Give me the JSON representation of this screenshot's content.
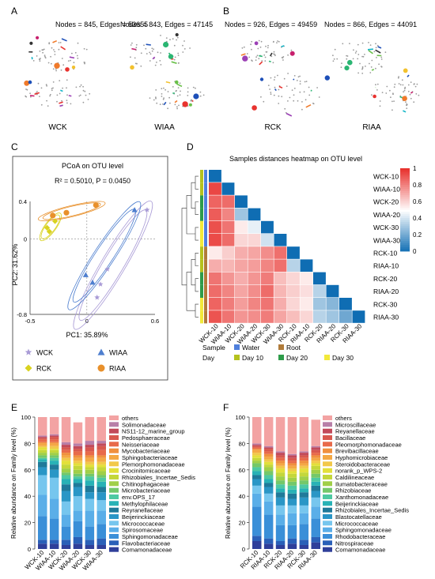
{
  "panels": {
    "A": {
      "letter": "A",
      "networks": [
        {
          "stats": "Nodes = 845, Edges = 53655",
          "label": "WCK"
        },
        {
          "stats": "Nodes = 843, Edges = 47145",
          "label": "WIAA"
        }
      ]
    },
    "B": {
      "letter": "B",
      "networks": [
        {
          "stats": "Nodes = 926, Edges = 49459",
          "label": "RCK"
        },
        {
          "stats": "Nodes = 866, Edges = 44091",
          "label": "RIAA"
        }
      ]
    },
    "C": {
      "letter": "C"
    },
    "D": {
      "letter": "D"
    },
    "E": {
      "letter": "E"
    },
    "F": {
      "letter": "F"
    }
  },
  "chart_data": [
    {
      "panel": "C",
      "type": "scatter",
      "title": "PCoA on OTU level",
      "annotation": "R² = 0.5010, P = 0.0450",
      "xlabel": "PC1: 35.89%",
      "ylabel": "PC2: 31.62%",
      "xlim": [
        -0.5,
        0.6
      ],
      "ylim": [
        -0.8,
        0.4
      ],
      "xticks": [
        "-0.5",
        "0",
        "0.6"
      ],
      "yticks": [
        "0.4",
        "0",
        "-0.8"
      ],
      "grid": false,
      "legend_position": "bottom",
      "series": [
        {
          "name": "WCK",
          "marker": "star",
          "color": "#a99bd6",
          "points": [
            [
              0.53,
              0.31
            ],
            [
              0.18,
              -0.32
            ],
            [
              0.12,
              -0.48
            ],
            [
              0.09,
              -0.62
            ]
          ]
        },
        {
          "name": "WIAA",
          "marker": "triangle",
          "color": "#4e7fcf",
          "points": [
            [
              0.42,
              0.31
            ],
            [
              -0.01,
              -0.38
            ],
            [
              0.05,
              -0.46
            ]
          ]
        },
        {
          "name": "RCK",
          "marker": "diamond",
          "color": "#d9d21f",
          "points": [
            [
              -0.35,
              0.12
            ],
            [
              -0.33,
              0.08
            ],
            [
              -0.28,
              0.19
            ]
          ]
        },
        {
          "name": "RIAA",
          "marker": "circle",
          "color": "#e8902b",
          "points": [
            [
              -0.3,
              0.25
            ],
            [
              -0.18,
              0.28
            ],
            [
              0.08,
              0.36
            ]
          ]
        }
      ]
    },
    {
      "panel": "D",
      "type": "heatmap",
      "title": "Samples distances heatmap on OTU level",
      "samples": [
        "WCK-10",
        "WIAA-10",
        "WCK-20",
        "WIAA-20",
        "WCK-30",
        "WIAA-30",
        "RCK-10",
        "RIAA-10",
        "RCK-20",
        "RIAA-20",
        "RCK-30",
        "RIAA-30"
      ],
      "colorbar": {
        "min": 0,
        "max": 1,
        "ticks": [
          "1",
          "0.8",
          "0.6",
          "0.4",
          "0.2",
          "0"
        ],
        "low_color": "#0f6db3",
        "mid_color": "#ffffff",
        "high_color": "#e8332f"
      },
      "lower_triangle": [
        [
          0.95
        ],
        [
          0.88,
          0.86
        ],
        [
          0.9,
          0.8,
          0.3
        ],
        [
          0.93,
          0.84,
          0.55,
          0.45
        ],
        [
          0.94,
          0.86,
          0.6,
          0.6,
          0.4
        ],
        [
          0.55,
          0.62,
          0.7,
          0.72,
          0.78,
          0.85
        ],
        [
          0.7,
          0.68,
          0.72,
          0.74,
          0.8,
          0.85,
          0.35
        ],
        [
          0.84,
          0.76,
          0.7,
          0.76,
          0.82,
          0.66,
          0.6,
          0.55
        ],
        [
          0.86,
          0.8,
          0.72,
          0.78,
          0.86,
          0.68,
          0.62,
          0.58,
          0.35
        ],
        [
          0.88,
          0.82,
          0.74,
          0.8,
          0.84,
          0.7,
          0.6,
          0.55,
          0.3,
          0.25
        ],
        [
          0.92,
          0.84,
          0.76,
          0.78,
          0.82,
          0.72,
          0.66,
          0.6,
          0.35,
          0.3,
          0.2
        ]
      ],
      "group_legend": {
        "sample_title": "Sample",
        "sample": [
          {
            "name": "Water",
            "color": "#4f7fdc"
          },
          {
            "name": "Root",
            "color": "#b07b3a"
          }
        ],
        "day_title": "Day",
        "day": [
          {
            "name": "Day 10",
            "color": "#b5c21e"
          },
          {
            "name": "Day 20",
            "color": "#2e9c4a"
          },
          {
            "name": "Day 30",
            "color": "#f2e93a"
          }
        ]
      }
    },
    {
      "panel": "E",
      "type": "bar",
      "stacked": true,
      "ylabel": "Relative abundance on Family level (%)",
      "ylim": [
        0,
        100
      ],
      "yticks": [
        "0",
        "20",
        "40",
        "60",
        "80",
        "100"
      ],
      "categories": [
        "WCK-10",
        "WIAA-10",
        "WCK-20",
        "WIAA-20",
        "WCK-30",
        "WIAA-30"
      ],
      "legend_position": "right",
      "series": [
        {
          "name": "Comamonadaceae",
          "color": "#2f3f9a",
          "values": [
            4,
            4,
            3,
            4,
            3,
            3
          ]
        },
        {
          "name": "Flavobacteriaceae",
          "color": "#2a60b8",
          "values": [
            3,
            3,
            4,
            5,
            4,
            5
          ]
        },
        {
          "name": "Sphingomonadaceae",
          "color": "#3a8fd8",
          "values": [
            18,
            16,
            10,
            12,
            10,
            11
          ]
        },
        {
          "name": "Spirosomaceae",
          "color": "#5aaee8",
          "values": [
            16,
            15,
            9,
            8,
            12,
            10
          ]
        },
        {
          "name": "Micrococcaceae",
          "color": "#76c6ee",
          "values": [
            15,
            16,
            10,
            11,
            9,
            8
          ]
        },
        {
          "name": "Beijerinckiaceae",
          "color": "#2a96c6",
          "values": [
            6,
            6,
            8,
            7,
            5,
            6
          ]
        },
        {
          "name": "Reyranellaceae",
          "color": "#1f7a9a",
          "values": [
            4,
            4,
            5,
            3,
            5,
            4
          ]
        },
        {
          "name": "Methylophilaceae",
          "color": "#28b2b6",
          "values": [
            2,
            3,
            4,
            3,
            4,
            4
          ]
        },
        {
          "name": "env.OPS_17",
          "color": "#4ec9a2",
          "values": [
            1,
            2,
            3,
            2,
            3,
            3
          ]
        },
        {
          "name": "Microbacteriaceae",
          "color": "#74c86a",
          "values": [
            2,
            2,
            2,
            2,
            2,
            2
          ]
        },
        {
          "name": "Chitinophagaceae",
          "color": "#a0cf48",
          "values": [
            2,
            2,
            3,
            3,
            3,
            3
          ]
        },
        {
          "name": "Rhizobiales_Incertae_Sedis",
          "color": "#c4d73a",
          "values": [
            2,
            2,
            3,
            3,
            2,
            3
          ]
        },
        {
          "name": "Crocinitomicaceae",
          "color": "#e3e03a",
          "values": [
            2,
            1,
            3,
            2,
            2,
            2
          ]
        },
        {
          "name": "Plemorphomonadaceae",
          "color": "#f2c84a",
          "values": [
            1,
            2,
            2,
            2,
            2,
            2
          ]
        },
        {
          "name": "Sphingobacteriaceae",
          "color": "#f4a844",
          "values": [
            2,
            2,
            2,
            2,
            3,
            3
          ]
        },
        {
          "name": "Mycobacteriaceae",
          "color": "#f0903e",
          "values": [
            1,
            1,
            2,
            2,
            2,
            2
          ]
        },
        {
          "name": "Neisseriaceae",
          "color": "#e86a4a",
          "values": [
            2,
            2,
            2,
            3,
            3,
            4
          ]
        },
        {
          "name": "Pedosphaeraceae",
          "color": "#d8584e",
          "values": [
            1,
            2,
            2,
            2,
            3,
            3
          ]
        },
        {
          "name": "NS11-12_marine_group",
          "color": "#c24a5a",
          "values": [
            1,
            1,
            2,
            2,
            2,
            2
          ]
        },
        {
          "name": "Solimonadaceae",
          "color": "#b87fa8",
          "values": [
            1,
            1,
            2,
            2,
            3,
            2
          ]
        },
        {
          "name": "others",
          "color": "#f3a3a3",
          "values": [
            14,
            13,
            19,
            16,
            18,
            18
          ]
        }
      ]
    },
    {
      "panel": "F",
      "type": "bar",
      "stacked": true,
      "ylabel": "Relative abundance on Family level (%)",
      "ylim": [
        0,
        100
      ],
      "yticks": [
        "0",
        "20",
        "40",
        "60",
        "80",
        "100"
      ],
      "categories": [
        "RCK-10",
        "RIAA-10",
        "RCK-20",
        "RIAA-20",
        "RCK-30",
        "RIAA-30"
      ],
      "legend_position": "right",
      "series": [
        {
          "name": "Comamonadaceae",
          "color": "#2f3f9a",
          "values": [
            6,
            4,
            3,
            4,
            3,
            5
          ]
        },
        {
          "name": "Nitrospiraceae",
          "color": "#2a60b8",
          "values": [
            4,
            4,
            3,
            4,
            4,
            4
          ]
        },
        {
          "name": "Rhodobacteraceae",
          "color": "#3a8fd8",
          "values": [
            22,
            18,
            12,
            10,
            12,
            14
          ]
        },
        {
          "name": "Sphingomonadaceae",
          "color": "#5aaee8",
          "values": [
            10,
            10,
            8,
            9,
            8,
            9
          ]
        },
        {
          "name": "Micrococcaceae",
          "color": "#76c6ee",
          "values": [
            6,
            6,
            7,
            6,
            6,
            7
          ]
        },
        {
          "name": "Blastocatellaceae",
          "color": "#2a96c6",
          "values": [
            5,
            5,
            6,
            5,
            6,
            5
          ]
        },
        {
          "name": "Rhizobiales_Incertae_Sedis",
          "color": "#1f7a9a",
          "values": [
            3,
            3,
            4,
            4,
            4,
            4
          ]
        },
        {
          "name": "Beijerinckiaceae",
          "color": "#28b2b6",
          "values": [
            3,
            3,
            3,
            3,
            3,
            3
          ]
        },
        {
          "name": "Xanthomonadaceae",
          "color": "#4ec9a2",
          "values": [
            3,
            3,
            3,
            3,
            3,
            3
          ]
        },
        {
          "name": "Rhizobiaceae",
          "color": "#74c86a",
          "values": [
            3,
            3,
            3,
            3,
            3,
            3
          ]
        },
        {
          "name": "Ilumatobacteraceae",
          "color": "#a0cf48",
          "values": [
            2,
            3,
            3,
            3,
            3,
            3
          ]
        },
        {
          "name": "Caldilineaceae",
          "color": "#c4d73a",
          "values": [
            2,
            2,
            3,
            3,
            3,
            3
          ]
        },
        {
          "name": "norank_p_WPS-2",
          "color": "#e3e03a",
          "values": [
            2,
            2,
            3,
            2,
            3,
            2
          ]
        },
        {
          "name": "Steroidobacteraceae",
          "color": "#f2c84a",
          "values": [
            2,
            2,
            2,
            2,
            2,
            2
          ]
        },
        {
          "name": "Hyphomicrobiaceae",
          "color": "#f4a844",
          "values": [
            2,
            2,
            2,
            2,
            2,
            2
          ]
        },
        {
          "name": "Brevibacillaceae",
          "color": "#f0903e",
          "values": [
            1,
            2,
            2,
            2,
            2,
            2
          ]
        },
        {
          "name": "Pleomorphomonadaceae",
          "color": "#e86a4a",
          "values": [
            1,
            2,
            2,
            2,
            2,
            2
          ]
        },
        {
          "name": "Bacillaceae",
          "color": "#d8584e",
          "values": [
            1,
            2,
            2,
            2,
            2,
            2
          ]
        },
        {
          "name": "Reyanellaceae",
          "color": "#c24a5a",
          "values": [
            1,
            1,
            2,
            2,
            2,
            2
          ]
        },
        {
          "name": "Microscillaceae",
          "color": "#b87fa8",
          "values": [
            1,
            1,
            1,
            1,
            1,
            1
          ]
        },
        {
          "name": "others",
          "color": "#f3a3a3",
          "values": [
            20,
            22,
            26,
            28,
            26,
            20
          ]
        }
      ]
    }
  ]
}
